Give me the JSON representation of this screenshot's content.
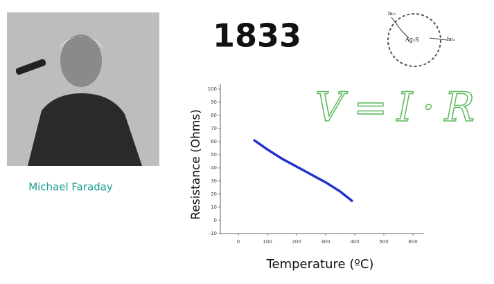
{
  "slide_title": "1833",
  "caption": "Michael Faraday",
  "diagram": {
    "labels": [
      "hν₁",
      "Ag₂S",
      "hν₂"
    ]
  },
  "annotation": "V=I·R",
  "chart_data": {
    "type": "line",
    "xlabel": "Temperature (ºC)",
    "ylabel": "Resistance (Ohms)",
    "x": [
      55,
      100,
      150,
      200,
      250,
      300,
      350,
      390
    ],
    "series": [
      {
        "color": "#2233cc",
        "values": [
          61,
          54,
          47,
          41,
          35,
          29,
          22,
          15
        ]
      }
    ],
    "xlim": [
      -62,
      638
    ],
    "ylim": [
      -10,
      104
    ],
    "xticks": [
      0,
      100,
      200,
      300,
      400,
      500,
      600
    ],
    "yticks": [
      -10,
      0,
      10,
      20,
      30,
      40,
      50,
      60,
      70,
      80,
      90,
      100
    ]
  }
}
